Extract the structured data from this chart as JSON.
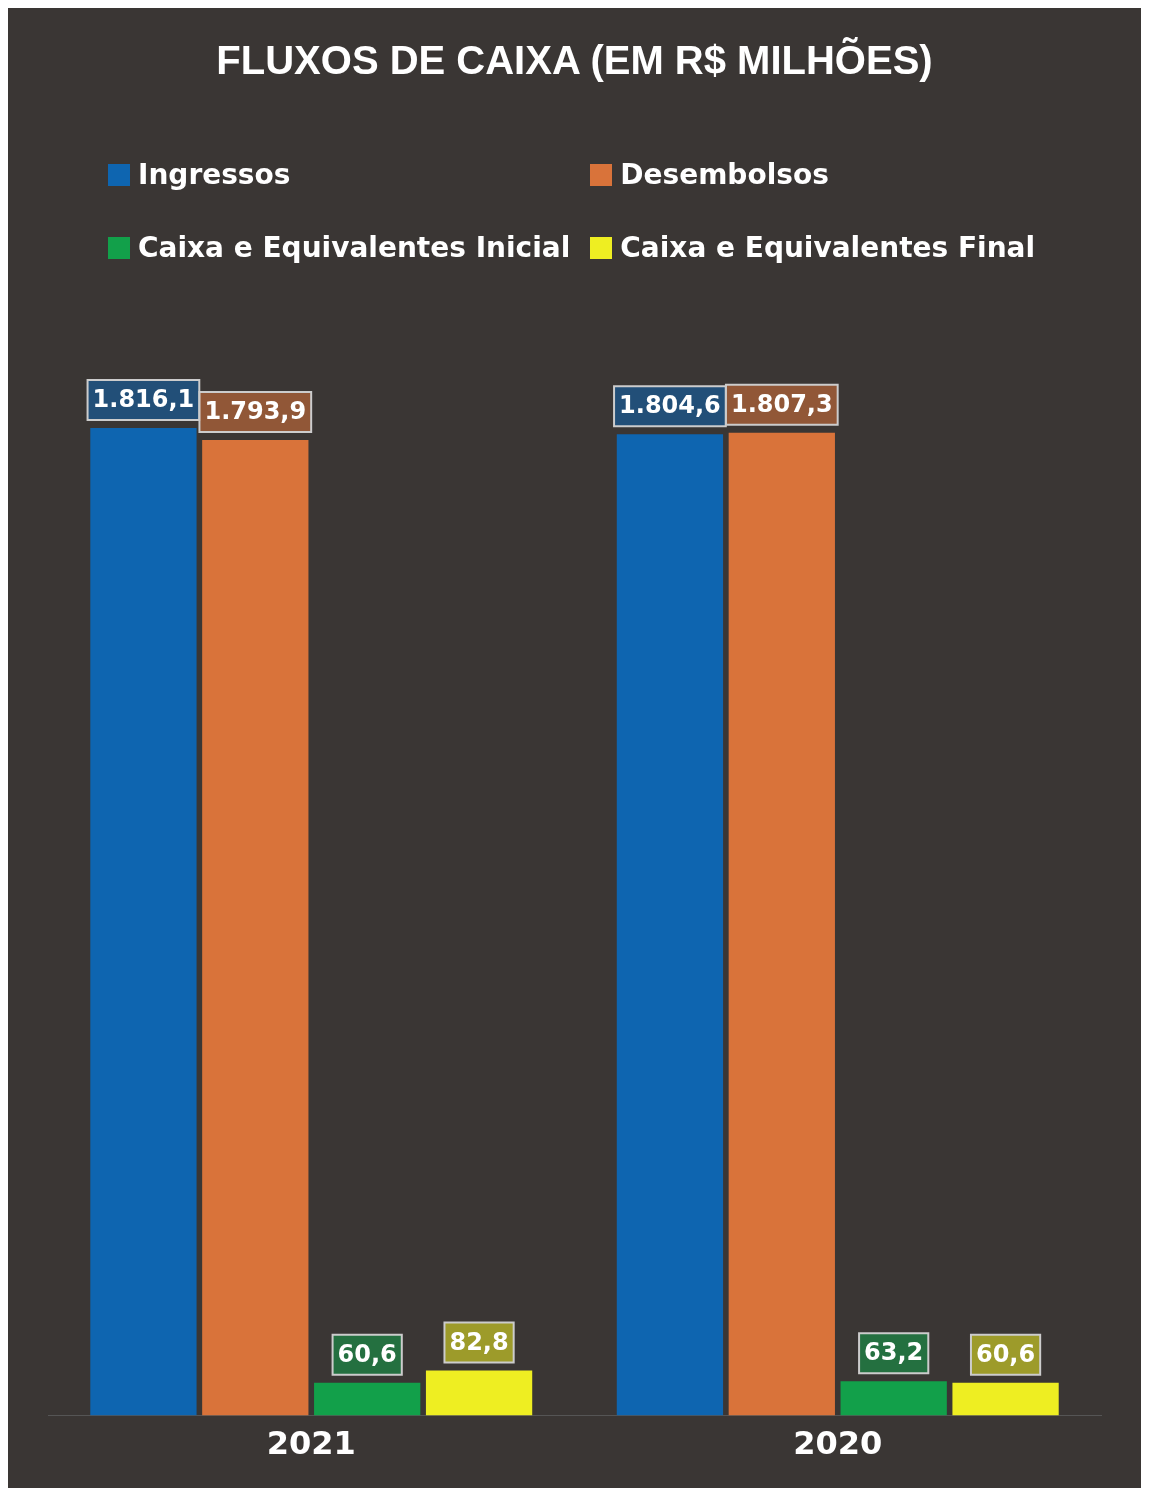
{
  "chart_data": {
    "type": "bar",
    "title": "FLUXOS DE CAIXA (EM R$ MILHÕES)",
    "categories": [
      "2021",
      "2020"
    ],
    "legend": "top",
    "series": [
      {
        "name": "Ingressos",
        "color": "#0e65b0",
        "values": [
          1816.1,
          1804.6
        ],
        "value_labels": [
          "1.816,1",
          "1.804,6"
        ]
      },
      {
        "name": "Desembolsos",
        "color": "#d9733a",
        "values": [
          1793.9,
          1807.3
        ],
        "value_labels": [
          "1.793,9",
          "1.807,3"
        ]
      },
      {
        "name": "Caixa e Equivalentes Inicial",
        "color": "#12a04a",
        "values": [
          60.6,
          63.2
        ],
        "value_labels": [
          "60,6",
          "63,2"
        ]
      },
      {
        "name": "Caixa e Equivalentes Final",
        "color": "#eeee22",
        "values": [
          82.8,
          60.6
        ],
        "value_labels": [
          "82,8",
          "60,6"
        ]
      }
    ]
  }
}
